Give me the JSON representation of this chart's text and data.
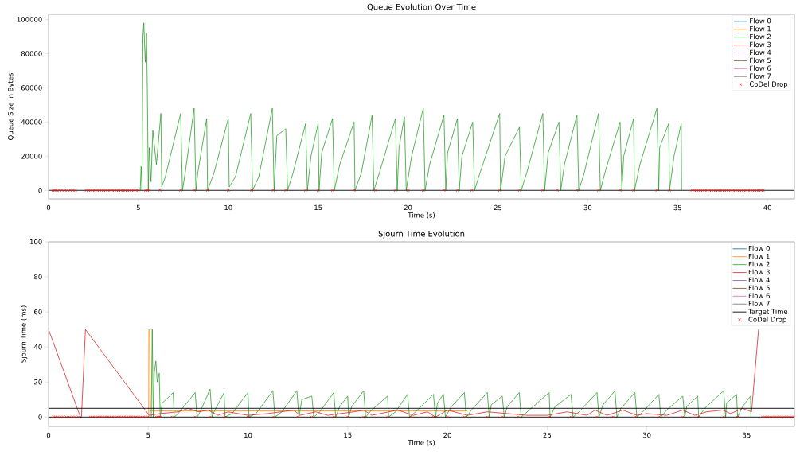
{
  "chart_data": [
    {
      "type": "line",
      "title": "Queue Evolution Over Time",
      "xlabel": "Time (s)",
      "ylabel": "Queue Size in Bytes",
      "xlim": [
        0,
        41.5
      ],
      "ylim": [
        -5000,
        103000
      ],
      "xticks": [
        0,
        5,
        10,
        15,
        20,
        25,
        30,
        35,
        40
      ],
      "yticks": [
        0,
        20000,
        40000,
        60000,
        80000,
        100000
      ],
      "legend": "top right",
      "ref_lines": [
        {
          "axis": "y",
          "value": 0,
          "color": "#000000"
        }
      ],
      "series": [
        {
          "name": "Flow 0",
          "color": "#1f77b4"
        },
        {
          "name": "Flow 1",
          "color": "#ff7f0e"
        },
        {
          "name": "Flow 2",
          "color": "#2ca02c",
          "x": [
            5.1,
            5.15,
            5.2,
            5.25,
            5.3,
            5.38,
            5.45,
            5.5,
            5.55,
            5.6,
            5.7,
            5.8,
            6.0,
            6.25,
            6.3,
            6.5,
            7.35,
            7.45,
            7.6,
            8.1,
            8.2,
            8.3,
            8.8,
            8.85,
            9.2,
            10.0,
            10.05,
            10.4,
            11.25,
            11.35,
            11.7,
            12.45,
            12.55,
            12.7,
            13.2,
            13.3,
            13.6,
            14.3,
            14.4,
            14.6,
            15.0,
            15.05,
            15.2,
            15.8,
            15.9,
            16.2,
            17.0,
            17.05,
            17.4,
            18.0,
            18.1,
            18.4,
            19.3,
            19.4,
            19.5,
            19.8,
            19.9,
            20.2,
            20.85,
            20.95,
            21.2,
            22.0,
            22.1,
            22.2,
            22.75,
            22.85,
            23.0,
            23.6,
            23.7,
            24.0,
            25.1,
            25.15,
            25.4,
            26.2,
            26.3,
            26.6,
            27.5,
            27.6,
            27.8,
            28.4,
            28.5,
            28.7,
            29.4,
            29.5,
            29.8,
            30.6,
            30.7,
            31.0,
            31.8,
            31.9,
            32.0,
            32.55,
            32.6,
            32.9,
            33.85,
            33.95,
            34.0,
            34.5,
            34.55,
            34.8,
            35.2,
            35.22
          ],
          "values": [
            0,
            14000,
            0,
            90000,
            98000,
            75000,
            92000,
            55000,
            0,
            25000,
            5000,
            35000,
            15000,
            45000,
            2000,
            8000,
            45000,
            0,
            10000,
            48000,
            0,
            10000,
            42000,
            0,
            10000,
            42000,
            2000,
            8000,
            45000,
            0,
            8000,
            48000,
            0,
            32000,
            36000,
            0,
            10000,
            39000,
            0,
            20000,
            39000,
            0,
            22000,
            42000,
            0,
            15000,
            40000,
            0,
            10000,
            44000,
            0,
            10000,
            42000,
            0,
            25000,
            43000,
            0,
            20000,
            48000,
            0,
            15000,
            44000,
            0,
            22000,
            42000,
            0,
            20000,
            40000,
            0,
            10000,
            45000,
            0,
            20000,
            37000,
            0,
            10000,
            45000,
            0,
            22000,
            40000,
            0,
            15000,
            44000,
            0,
            10000,
            45000,
            0,
            12000,
            40000,
            0,
            20000,
            42000,
            0,
            15000,
            48000,
            0,
            25000,
            39000,
            0,
            20000,
            39000,
            0
          ]
        },
        {
          "name": "Flow 3",
          "color": "#d62728"
        },
        {
          "name": "Flow 4",
          "color": "#9467bd"
        },
        {
          "name": "Flow 5",
          "color": "#8c564b"
        },
        {
          "name": "Flow 6",
          "color": "#e377c2"
        },
        {
          "name": "Flow 7",
          "color": "#7f7f7f"
        },
        {
          "name": "CoDel Drop",
          "type": "scatter",
          "marker": "cross",
          "color": "#ff0000",
          "x": [
            0.25,
            0.35,
            0.45,
            0.6,
            0.75,
            0.9,
            1.05,
            1.2,
            1.35,
            1.5,
            2.1,
            2.22,
            2.34,
            2.46,
            2.58,
            2.7,
            2.82,
            2.94,
            3.06,
            3.18,
            3.3,
            3.42,
            3.54,
            3.66,
            3.78,
            3.9,
            4.02,
            4.14,
            4.26,
            4.38,
            4.5,
            4.62,
            4.74,
            4.86,
            4.98,
            5.4,
            5.5,
            5.6,
            6.2,
            7.35,
            8.1,
            8.85,
            10.0,
            11.3,
            12.5,
            13.2,
            14.3,
            15.0,
            15.8,
            17.0,
            18.2,
            19.3,
            20.0,
            20.85,
            22.0,
            22.75,
            23.55,
            25.1,
            26.2,
            27.5,
            28.3,
            29.4,
            30.6,
            31.8,
            32.55,
            33.85,
            34.55,
            35.8,
            35.92,
            36.04,
            36.16,
            36.28,
            36.4,
            36.52,
            36.64,
            36.76,
            36.88,
            37.0,
            37.12,
            37.24,
            37.36,
            37.48,
            37.6,
            37.72,
            37.84,
            37.96,
            38.08,
            38.2,
            38.32,
            38.44,
            38.56,
            38.68,
            38.8,
            38.92,
            39.04,
            39.16,
            39.28,
            39.4,
            39.52,
            39.64,
            39.76
          ],
          "values": [
            0,
            0,
            0,
            0,
            0,
            0,
            0,
            0,
            0,
            0,
            0,
            0,
            0,
            0,
            0,
            0,
            0,
            0,
            0,
            0,
            0,
            0,
            0,
            0,
            0,
            0,
            0,
            0,
            0,
            0,
            0,
            0,
            0,
            0,
            0,
            0,
            0,
            0,
            0,
            0,
            0,
            0,
            0,
            0,
            0,
            0,
            0,
            0,
            0,
            0,
            0,
            0,
            0,
            0,
            0,
            0,
            0,
            0,
            0,
            0,
            0,
            0,
            0,
            0,
            0,
            0,
            0,
            0,
            0,
            0,
            0,
            0,
            0,
            0,
            0,
            0,
            0,
            0,
            0,
            0,
            0,
            0,
            0,
            0,
            0,
            0,
            0,
            0,
            0,
            0,
            0,
            0,
            0,
            0,
            0,
            0,
            0,
            0,
            0,
            0,
            0
          ]
        }
      ]
    },
    {
      "type": "line",
      "title": "Sjourn Time Evolution",
      "xlabel": "Time (s)",
      "ylabel": "Sjourn Time (ms)",
      "xlim": [
        0,
        37.4
      ],
      "ylim": [
        -5.3,
        100
      ],
      "xticks": [
        0,
        5,
        10,
        15,
        20,
        25,
        30,
        35
      ],
      "yticks": [
        0,
        20,
        40,
        60,
        80,
        100
      ],
      "legend": "top right",
      "ref_lines": [
        {
          "axis": "y",
          "value": 0,
          "color": "#000000"
        },
        {
          "axis": "y",
          "value": 5,
          "label": "Target Time",
          "color": "#000000"
        }
      ],
      "series": [
        {
          "name": "Flow 0",
          "color": "#1f77b4"
        },
        {
          "name": "Flow 1",
          "color": "#ff7f0e",
          "x": [
            5.02,
            5.03,
            5.07,
            5.1,
            21.0
          ],
          "values": [
            0,
            50,
            50,
            3.5,
            3.5
          ]
        },
        {
          "name": "Flow 2",
          "color": "#2ca02c",
          "x": [
            5.15,
            5.2,
            5.25,
            5.3,
            5.38,
            5.45,
            5.55,
            5.6,
            5.7,
            6.25,
            6.3,
            6.5,
            7.35,
            7.45,
            7.6,
            8.1,
            8.2,
            8.3,
            8.8,
            8.85,
            9.2,
            10.0,
            10.05,
            10.4,
            11.25,
            11.35,
            11.7,
            12.45,
            12.55,
            12.7,
            13.2,
            13.3,
            13.6,
            14.3,
            14.4,
            14.6,
            15.0,
            15.05,
            15.2,
            15.8,
            15.9,
            16.2,
            17.0,
            17.05,
            17.4,
            18.0,
            18.1,
            18.4,
            19.3,
            19.4,
            19.5,
            19.8,
            19.9,
            20.2,
            20.85,
            20.95,
            21.2,
            22.0,
            22.1,
            22.2,
            22.75,
            22.85,
            23.0,
            23.6,
            23.7,
            24.0,
            25.1,
            25.15,
            25.4,
            26.2,
            26.3,
            26.6,
            27.5,
            27.6,
            27.8,
            28.4,
            28.5,
            28.7,
            29.4,
            29.5,
            29.8,
            30.6,
            30.7,
            31.0,
            31.8,
            31.9,
            32.0,
            32.55,
            32.6,
            32.9,
            33.85,
            33.95,
            34.0,
            34.5,
            34.55,
            34.8,
            35.2,
            35.22
          ],
          "values": [
            0,
            50,
            0,
            25,
            32,
            20,
            25,
            0,
            8,
            14,
            0,
            2,
            14,
            0,
            3,
            16,
            0,
            3,
            14,
            0,
            2,
            14,
            0,
            2,
            15,
            0,
            3,
            15,
            0,
            10,
            12,
            0,
            3,
            14,
            0,
            6,
            12,
            0,
            6,
            15,
            0,
            4,
            12,
            0,
            3,
            13,
            0,
            3,
            13,
            0,
            8,
            13,
            0,
            6,
            14,
            0,
            4,
            14,
            0,
            7,
            12,
            0,
            6,
            14,
            0,
            3,
            14,
            0,
            6,
            13,
            0,
            3,
            14,
            0,
            7,
            15,
            0,
            5,
            14,
            0,
            3,
            13,
            0,
            4,
            12,
            0,
            6,
            12,
            0,
            5,
            15,
            0,
            8,
            13,
            0,
            6,
            12,
            0
          ]
        },
        {
          "name": "Flow 3",
          "color": "#d62728",
          "x": [
            0,
            1.6,
            1.65,
            1.85,
            5.05,
            5.6,
            6.5,
            7.0,
            7.5,
            8.0,
            8.5,
            9.0,
            10.0,
            11.0,
            12.3,
            12.6,
            13.4,
            14.0,
            15.3,
            15.8,
            16.2,
            17.5,
            18.3,
            19.0,
            19.4,
            20.0,
            21.0,
            22.0,
            23.0,
            24.0,
            25.0,
            26.0,
            27.0,
            27.4,
            28.0,
            28.8,
            29.5,
            30.0,
            31.0,
            31.8,
            32.4,
            33.0,
            33.8,
            34.2,
            34.8,
            35.25,
            35.6
          ],
          "values": [
            50,
            0,
            0,
            50,
            1,
            2,
            3,
            5,
            3,
            4,
            1,
            3,
            1,
            2,
            4,
            1,
            3,
            1,
            3,
            4,
            1,
            4,
            1,
            3,
            0,
            4,
            1,
            3,
            2,
            1,
            1,
            3,
            1,
            4,
            1,
            4,
            1,
            2,
            1,
            4,
            1,
            3,
            4,
            2,
            5,
            3,
            50
          ]
        },
        {
          "name": "Flow 4",
          "color": "#9467bd"
        },
        {
          "name": "Flow 5",
          "color": "#8c564b"
        },
        {
          "name": "Flow 6",
          "color": "#e377c2"
        },
        {
          "name": "Flow 7",
          "color": "#7f7f7f"
        },
        {
          "name": "CoDel Drop",
          "type": "scatter",
          "marker": "cross",
          "color": "#ff0000",
          "x": [
            0.25,
            0.35,
            0.45,
            0.6,
            0.75,
            0.9,
            1.05,
            1.2,
            1.35,
            1.5,
            2.1,
            2.22,
            2.34,
            2.46,
            2.58,
            2.7,
            2.82,
            2.94,
            3.06,
            3.18,
            3.3,
            3.42,
            3.54,
            3.66,
            3.78,
            3.9,
            4.02,
            4.14,
            4.26,
            4.38,
            4.5,
            4.62,
            4.74,
            4.86,
            4.98,
            5.4,
            5.5,
            5.6,
            6.2,
            7.35,
            8.1,
            8.85,
            10.0,
            11.3,
            12.5,
            13.2,
            14.3,
            15.0,
            15.8,
            17.0,
            18.2,
            19.3,
            20.0,
            20.85,
            22.0,
            22.75,
            23.55,
            25.1,
            26.2,
            27.5,
            28.3,
            29.4,
            30.6,
            31.8,
            32.55,
            33.85,
            34.55,
            35.8,
            35.92,
            36.04,
            36.16,
            36.28,
            36.4,
            36.52,
            36.64,
            36.76,
            36.88,
            37.0,
            37.12,
            37.24,
            37.36
          ],
          "values": [
            0,
            0,
            0,
            0,
            0,
            0,
            0,
            0,
            0,
            0,
            0,
            0,
            0,
            0,
            0,
            0,
            0,
            0,
            0,
            0,
            0,
            0,
            0,
            0,
            0,
            0,
            0,
            0,
            0,
            0,
            0,
            0,
            0,
            0,
            0,
            0,
            0,
            0,
            0,
            0,
            0,
            0,
            0,
            0,
            0,
            0,
            0,
            0,
            0,
            0,
            0,
            0,
            0,
            0,
            0,
            0,
            0,
            0,
            0,
            0,
            0,
            0,
            0,
            0,
            0,
            0,
            0,
            0,
            0,
            0,
            0,
            0,
            0,
            0,
            0,
            0,
            0,
            0,
            0,
            0,
            0
          ]
        }
      ]
    }
  ]
}
